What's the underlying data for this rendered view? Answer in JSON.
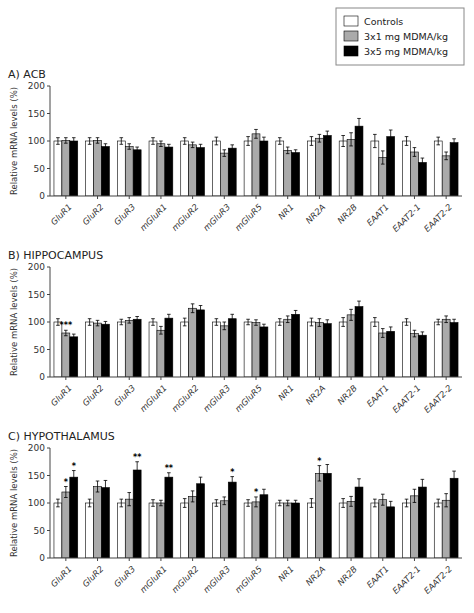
{
  "chart_data": [
    {
      "type": "bar",
      "title": "A) ACB",
      "ylabel": "Relative mRNA levels (%)",
      "categories": [
        "GluR1",
        "GluR2",
        "GluR3",
        "mGluR1",
        "mGluR2",
        "mGluR3",
        "mGluR5",
        "NR1",
        "NR2A",
        "NR2B",
        "EAAT1",
        "EAAT2-1",
        "EAAT2-2"
      ],
      "ylim": [
        0,
        200
      ],
      "yticks": [
        0,
        50,
        100,
        150,
        200
      ],
      "grid": false,
      "legend": "upper right",
      "series": [
        {
          "name": "Controls",
          "color": "#ffffff",
          "values": [
            100,
            100,
            100,
            100,
            100,
            100,
            100,
            100,
            100,
            100,
            100,
            100,
            100
          ],
          "errors": [
            6,
            6,
            6,
            6,
            6,
            7,
            8,
            6,
            8,
            10,
            12,
            8,
            7
          ]
        },
        {
          "name": "3x1 mg MDMA/kg",
          "color": "#aaaaaa",
          "values": [
            101,
            101,
            90,
            95,
            93,
            78,
            113,
            83,
            105,
            103,
            70,
            80,
            73
          ],
          "errors": [
            5,
            5,
            5,
            5,
            5,
            6,
            8,
            6,
            7,
            12,
            12,
            8,
            7
          ]
        },
        {
          "name": "3x5 mg MDMA/kg",
          "color": "#000000",
          "values": [
            100,
            90,
            84,
            89,
            88,
            87,
            100,
            79,
            110,
            127,
            108,
            61,
            97
          ],
          "errors": [
            6,
            5,
            5,
            5,
            6,
            6,
            7,
            5,
            8,
            14,
            12,
            8,
            7
          ]
        }
      ]
    },
    {
      "type": "bar",
      "title": "B) HIPPOCAMPUS",
      "ylabel": "Relative mRNA levels (%)",
      "categories": [
        "GluR1",
        "GluR2",
        "GluR3",
        "mGluR1",
        "mGluR2",
        "mGluR3",
        "mGluR5",
        "NR1",
        "NR2A",
        "NR2B",
        "EAAT1",
        "EAAT2-1",
        "EAAT2-2"
      ],
      "ylim": [
        0,
        200
      ],
      "yticks": [
        0,
        50,
        100,
        150,
        200
      ],
      "grid": false,
      "series": [
        {
          "color": "#ffffff",
          "values": [
            100,
            100,
            100,
            100,
            100,
            100,
            100,
            100,
            100,
            100,
            100,
            100,
            100
          ],
          "errors": [
            6,
            6,
            5,
            6,
            7,
            6,
            5,
            6,
            7,
            8,
            8,
            6,
            5
          ]
        },
        {
          "color": "#aaaaaa",
          "values": [
            80,
            98,
            103,
            85,
            125,
            93,
            99,
            105,
            99,
            113,
            80,
            79,
            105
          ],
          "errors": [
            5,
            5,
            5,
            7,
            8,
            7,
            5,
            6,
            7,
            10,
            8,
            6,
            6
          ],
          "annotations": [
            "***",
            null,
            null,
            null,
            null,
            null,
            null,
            null,
            null,
            null,
            null,
            null,
            null
          ]
        },
        {
          "color": "#000000",
          "values": [
            73,
            96,
            105,
            107,
            122,
            106,
            91,
            114,
            97,
            128,
            83,
            76,
            99
          ],
          "errors": [
            5,
            5,
            5,
            7,
            8,
            8,
            5,
            7,
            7,
            10,
            8,
            6,
            6
          ]
        }
      ]
    },
    {
      "type": "bar",
      "title": "C) HYPOTHALAMUS",
      "ylabel": "Relative mRNA levels (%)",
      "categories": [
        "GluR1",
        "GluR2",
        "GluR3",
        "mGluR1",
        "mGluR2",
        "mGluR3",
        "mGluR5",
        "NR1",
        "NR2A",
        "NR2B",
        "EAAT1",
        "EAAT2-1",
        "EAAT2-2"
      ],
      "ylim": [
        0,
        200
      ],
      "yticks": [
        0,
        50,
        100,
        150,
        200
      ],
      "grid": false,
      "series": [
        {
          "color": "#ffffff",
          "values": [
            100,
            100,
            100,
            100,
            100,
            100,
            100,
            100,
            100,
            100,
            100,
            100,
            100
          ],
          "errors": [
            7,
            7,
            7,
            6,
            8,
            6,
            6,
            5,
            8,
            8,
            7,
            7,
            7
          ]
        },
        {
          "color": "#aaaaaa",
          "values": [
            120,
            130,
            107,
            100,
            112,
            104,
            102,
            100,
            154,
            103,
            106,
            113,
            105
          ],
          "errors": [
            10,
            10,
            12,
            5,
            10,
            7,
            9,
            5,
            14,
            9,
            10,
            12,
            12
          ],
          "annotations": [
            "*",
            null,
            null,
            null,
            null,
            null,
            "*",
            null,
            "*",
            null,
            null,
            null,
            null
          ]
        },
        {
          "color": "#000000",
          "values": [
            147,
            128,
            160,
            147,
            135,
            138,
            115,
            100,
            154,
            129,
            93,
            129,
            145
          ],
          "errors": [
            12,
            13,
            15,
            8,
            12,
            10,
            10,
            5,
            16,
            15,
            10,
            14,
            13
          ],
          "annotations": [
            "*",
            null,
            "**",
            "**",
            null,
            "*",
            null,
            null,
            null,
            null,
            null,
            null,
            null
          ]
        }
      ]
    }
  ]
}
